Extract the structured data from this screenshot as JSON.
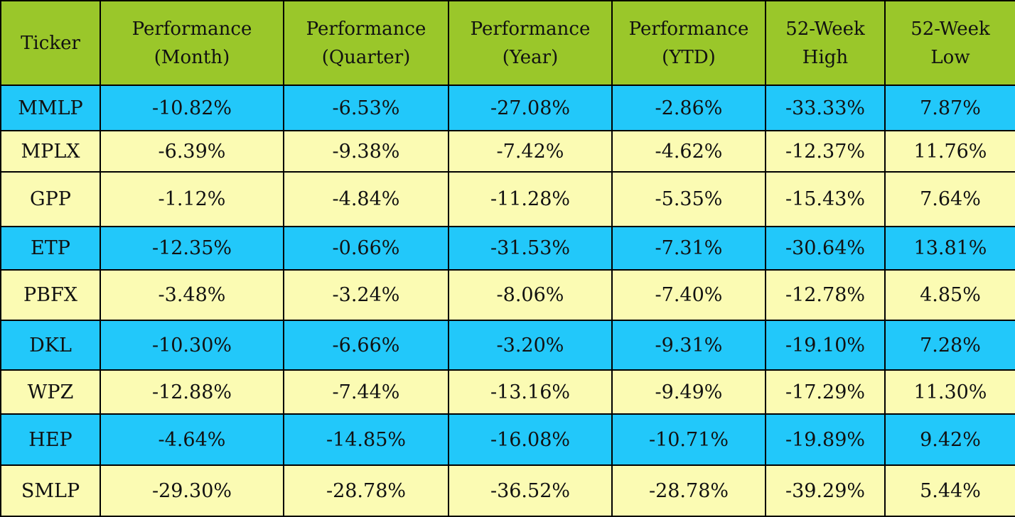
{
  "chart_data": {
    "type": "table",
    "columns": [
      "Ticker",
      "Performance\n(Month)",
      "Performance\n(Quarter)",
      "Performance\n(Year)",
      "Performance\n(YTD)",
      "52-Week\nHigh",
      "52-Week\nLow"
    ],
    "rows": [
      [
        "MMLP",
        "-10.82%",
        "-6.53%",
        "-27.08%",
        "-2.86%",
        "-33.33%",
        "7.87%"
      ],
      [
        "MPLX",
        "-6.39%",
        "-9.38%",
        "-7.42%",
        "-4.62%",
        "-12.37%",
        "11.76%"
      ],
      [
        "GPP",
        "-1.12%",
        "-4.84%",
        "-11.28%",
        "-5.35%",
        "-15.43%",
        "7.64%"
      ],
      [
        "ETP",
        "-12.35%",
        "-0.66%",
        "-31.53%",
        "-7.31%",
        "-30.64%",
        "13.81%"
      ],
      [
        "PBFX",
        "-3.48%",
        "-3.24%",
        "-8.06%",
        "-7.40%",
        "-12.78%",
        "4.85%"
      ],
      [
        "DKL",
        "-10.30%",
        "-6.66%",
        "-3.20%",
        "-9.31%",
        "-19.10%",
        "7.28%"
      ],
      [
        "WPZ",
        "-12.88%",
        "-7.44%",
        "-13.16%",
        "-9.49%",
        "-17.29%",
        "11.30%"
      ],
      [
        "HEP",
        "-4.64%",
        "-14.85%",
        "-16.08%",
        "-10.71%",
        "-19.89%",
        "9.42%"
      ],
      [
        "SMLP",
        "-29.30%",
        "-28.78%",
        "-36.52%",
        "-28.78%",
        "-39.29%",
        "5.44%"
      ]
    ],
    "row_colors": [
      "blue",
      "yellow",
      "yellow",
      "blue",
      "yellow",
      "blue",
      "yellow",
      "blue",
      "yellow"
    ],
    "colors": {
      "header": "#9ac72a",
      "blue": "#22c8fa",
      "yellow": "#fbfbb3",
      "border": "#000000"
    }
  }
}
